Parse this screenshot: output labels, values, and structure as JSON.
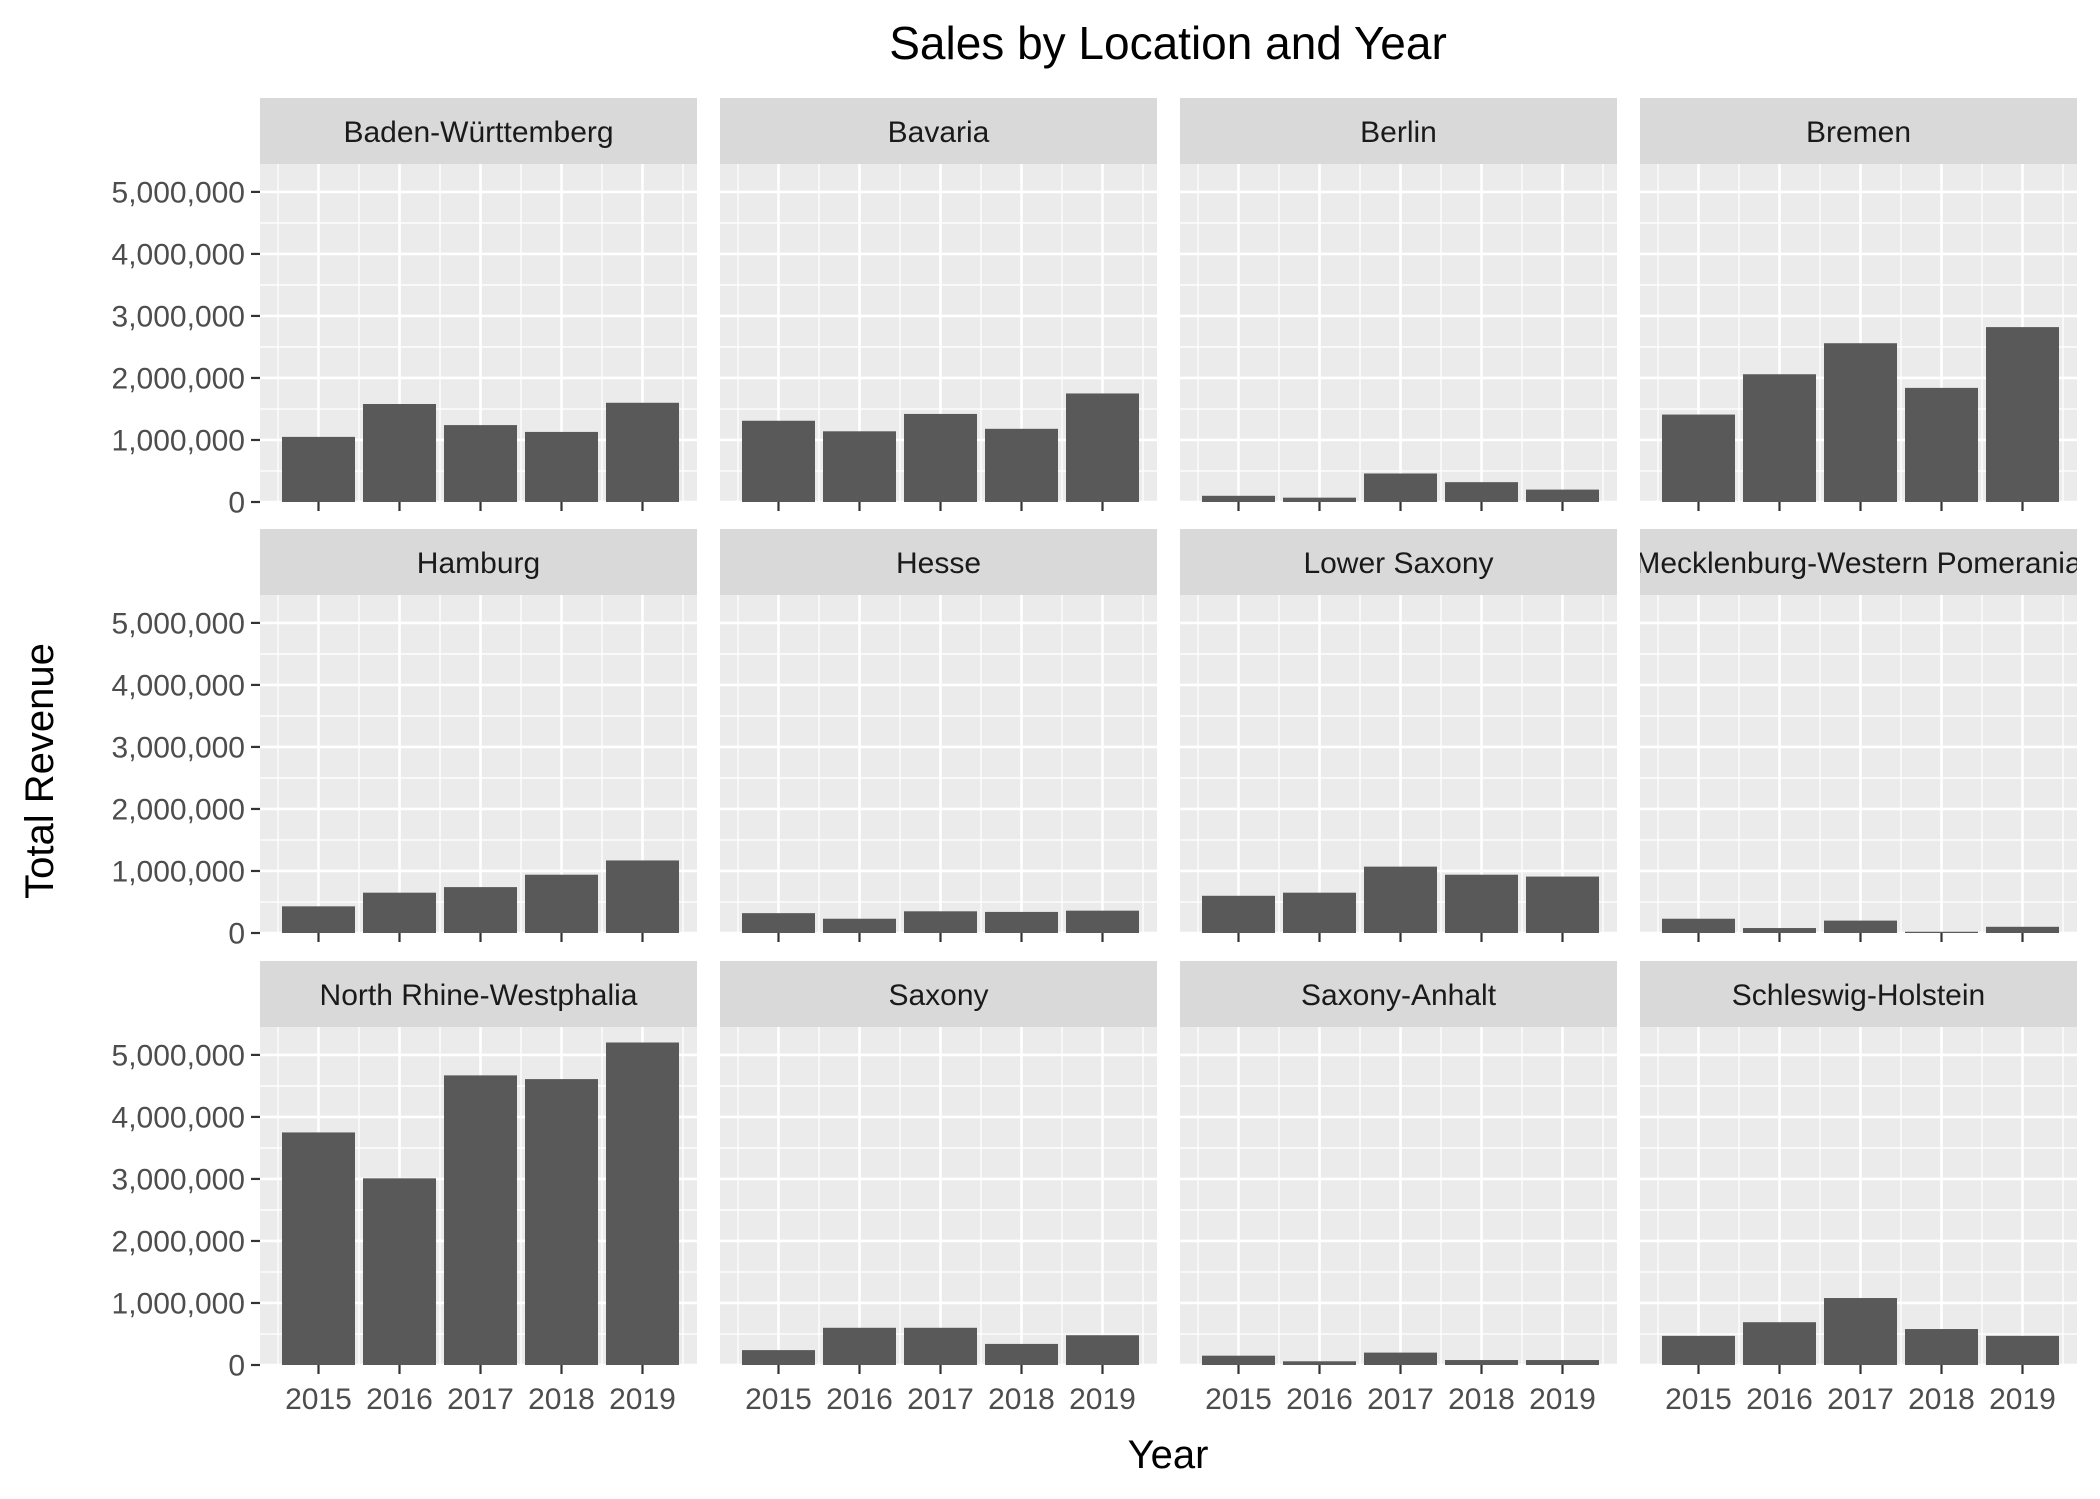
{
  "chart_data": {
    "type": "bar",
    "title": "Sales by Location and Year",
    "xlabel": "Year",
    "ylabel": "Total Revenue",
    "categories": [
      "2015",
      "2016",
      "2017",
      "2018",
      "2019"
    ],
    "y_ticks": [
      0,
      1000000,
      2000000,
      3000000,
      4000000,
      5000000
    ],
    "y_tick_labels": [
      "0",
      "1,000,000",
      "2,000,000",
      "3,000,000",
      "4,000,000",
      "5,000,000"
    ],
    "ylim": [
      0,
      5450000
    ],
    "grid": true,
    "colors": {
      "bar": "#595959",
      "panel": "#ebebeb",
      "strip": "#d9d9d9",
      "grid": "#ffffff"
    },
    "facets": [
      {
        "name": "Baden-Württemberg",
        "values": [
          1050000,
          1580000,
          1240000,
          1130000,
          1600000
        ]
      },
      {
        "name": "Bavaria",
        "values": [
          1310000,
          1140000,
          1420000,
          1180000,
          1750000
        ]
      },
      {
        "name": "Berlin",
        "values": [
          100000,
          70000,
          460000,
          320000,
          200000
        ]
      },
      {
        "name": "Bremen",
        "values": [
          1410000,
          2060000,
          2560000,
          1840000,
          2820000
        ]
      },
      {
        "name": "Hamburg",
        "values": [
          430000,
          650000,
          740000,
          940000,
          1170000
        ]
      },
      {
        "name": "Hesse",
        "values": [
          320000,
          230000,
          350000,
          340000,
          360000
        ]
      },
      {
        "name": "Lower Saxony",
        "values": [
          600000,
          650000,
          1070000,
          940000,
          910000
        ]
      },
      {
        "name": "Mecklenburg-Western Pomerania",
        "values": [
          230000,
          80000,
          200000,
          20000,
          100000
        ]
      },
      {
        "name": "North Rhine-Westphalia",
        "values": [
          3750000,
          3010000,
          4670000,
          4610000,
          5200000
        ]
      },
      {
        "name": "Saxony",
        "values": [
          240000,
          600000,
          600000,
          340000,
          480000
        ]
      },
      {
        "name": "Saxony-Anhalt",
        "values": [
          150000,
          60000,
          200000,
          80000,
          80000
        ]
      },
      {
        "name": "Schleswig-Holstein",
        "values": [
          470000,
          690000,
          1080000,
          580000,
          470000
        ]
      }
    ]
  }
}
